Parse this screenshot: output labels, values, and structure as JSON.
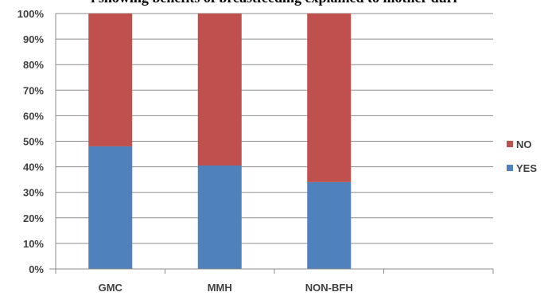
{
  "chart_data": {
    "type": "bar",
    "stacked": true,
    "title": "l showing benefits of breastfeeding explained to mother duri",
    "categories": [
      "GMC",
      "MMH",
      "NON-BFH"
    ],
    "series": [
      {
        "name": "YES",
        "values": [
          48,
          40.5,
          34
        ],
        "color": "#4f81bd"
      },
      {
        "name": "NO",
        "values": [
          52,
          59.5,
          66
        ],
        "color": "#c0504d"
      }
    ],
    "y_ticks": [
      "0%",
      "10%",
      "20%",
      "30%",
      "40%",
      "50%",
      "60%",
      "70%",
      "80%",
      "90%",
      "100%"
    ],
    "ylim": [
      0,
      100
    ],
    "grid": true,
    "legend_position": "right",
    "legend_order": [
      "NO",
      "YES"
    ]
  }
}
